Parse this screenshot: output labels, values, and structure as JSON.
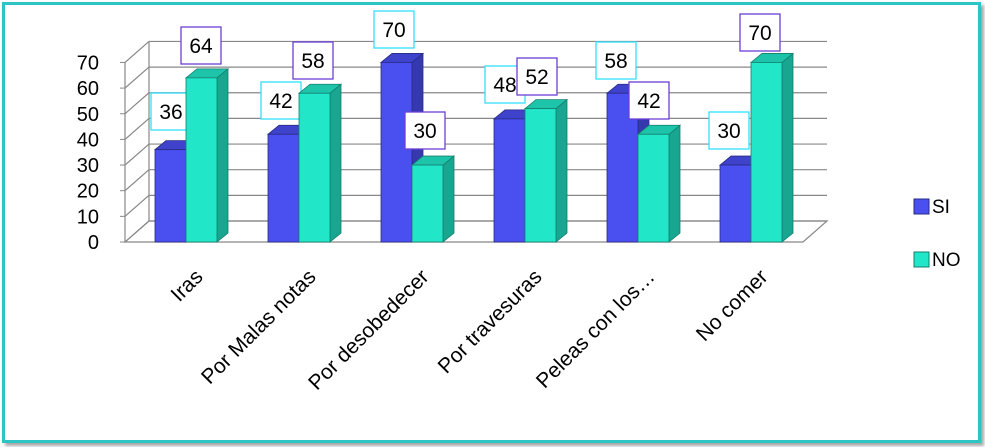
{
  "chart_data": {
    "type": "bar",
    "categories": [
      "Iras",
      "Por Malas notas",
      "Por desobedecer",
      "Por travesuras",
      "Peleas con los…",
      "No comer"
    ],
    "series": [
      {
        "name": "SI",
        "values": [
          36,
          42,
          70,
          48,
          58,
          30
        ],
        "color": "#4a4ff0"
      },
      {
        "name": "NO",
        "values": [
          64,
          58,
          30,
          52,
          42,
          70
        ],
        "color": "#22e6c8"
      }
    ],
    "yticks": [
      0,
      10,
      20,
      30,
      40,
      50,
      60,
      70
    ],
    "ylim": [
      0,
      70
    ],
    "grid": true,
    "legend_position": "right",
    "label_border_colors": {
      "SI": "#33e0ff",
      "NO": "#6b3fd6"
    }
  }
}
